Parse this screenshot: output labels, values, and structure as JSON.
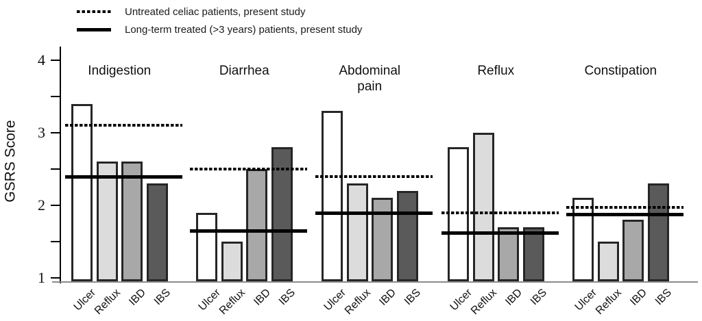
{
  "legend": [
    {
      "style": "dotted",
      "label": "Untreated celiac patients, present study"
    },
    {
      "style": "solid",
      "label": "Long-term treated (>3 years) patients, present study"
    }
  ],
  "colors": {
    "bar_fills": [
      "#ffffff",
      "#dcdcdc",
      "#a8a8a8",
      "#5a5a5a"
    ],
    "bar_border": "#262626",
    "line_color": "#000000",
    "x_axis_line": "#8a8a8a"
  },
  "chart_data": {
    "type": "bar",
    "title": "",
    "xlabel": "",
    "ylabel": "GSRS Score",
    "ylim": [
      1,
      4.2
    ],
    "y_major_ticks": [
      1,
      2,
      3,
      4
    ],
    "y_minor_ticks": [
      1.5,
      2.5,
      3.5
    ],
    "grid": false,
    "legend_position": "top-left",
    "categories": [
      "Ulcer",
      "Reflux",
      "IBD",
      "IBS"
    ],
    "groups": [
      {
        "label": "Indigestion",
        "values": [
          3.4,
          2.6,
          2.6,
          2.3
        ],
        "untreated_celiac_line": 3.1,
        "treated_line": 2.4
      },
      {
        "label": "Diarrhea",
        "values": [
          1.9,
          1.5,
          2.5,
          2.8
        ],
        "untreated_celiac_line": 2.5,
        "treated_line": 1.65
      },
      {
        "label": "Abdominal\npain",
        "values": [
          3.3,
          2.3,
          2.1,
          2.2
        ],
        "untreated_celiac_line": 2.4,
        "treated_line": 1.9
      },
      {
        "label": "Reflux",
        "values": [
          2.8,
          3.0,
          1.7,
          1.7
        ],
        "untreated_celiac_line": 1.9,
        "treated_line": 1.62
      },
      {
        "label": "Constipation",
        "values": [
          2.1,
          1.5,
          1.8,
          2.3
        ],
        "untreated_celiac_line": 1.97,
        "treated_line": 1.88
      }
    ]
  }
}
